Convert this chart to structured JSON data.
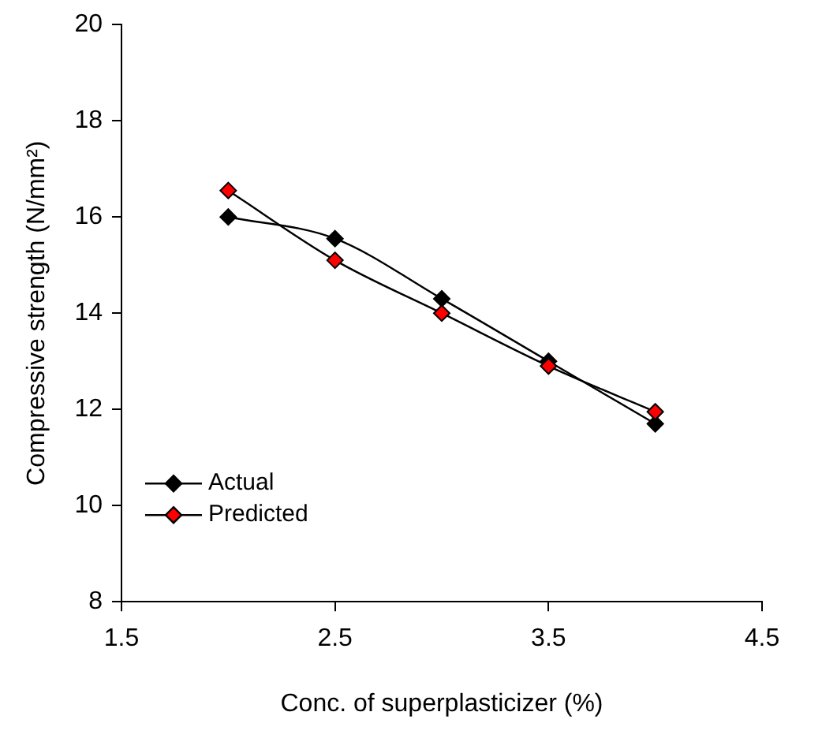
{
  "chart_data": {
    "type": "line",
    "xlabel": "Conc. of superplasticizer (%)",
    "ylabel": "Compressive strength (N/mm²)",
    "x": [
      2,
      2.5,
      3,
      3.5,
      4
    ],
    "series": [
      {
        "name": "Actual",
        "color": "#000000",
        "values": [
          16.0,
          15.55,
          14.3,
          13.0,
          11.7
        ]
      },
      {
        "name": "Predicted",
        "color": "#ff0000",
        "values": [
          16.55,
          15.1,
          14.0,
          12.9,
          11.95
        ]
      }
    ],
    "xlim": [
      1.5,
      4.5
    ],
    "xticks": [
      1.5,
      2.5,
      3.5,
      4.5
    ],
    "ylim": [
      8,
      20
    ],
    "yticks": [
      8,
      10,
      12,
      14,
      16,
      18,
      20
    ],
    "grid": false,
    "legend": "bottom left",
    "marker": "diamond",
    "line_style": "solid"
  }
}
